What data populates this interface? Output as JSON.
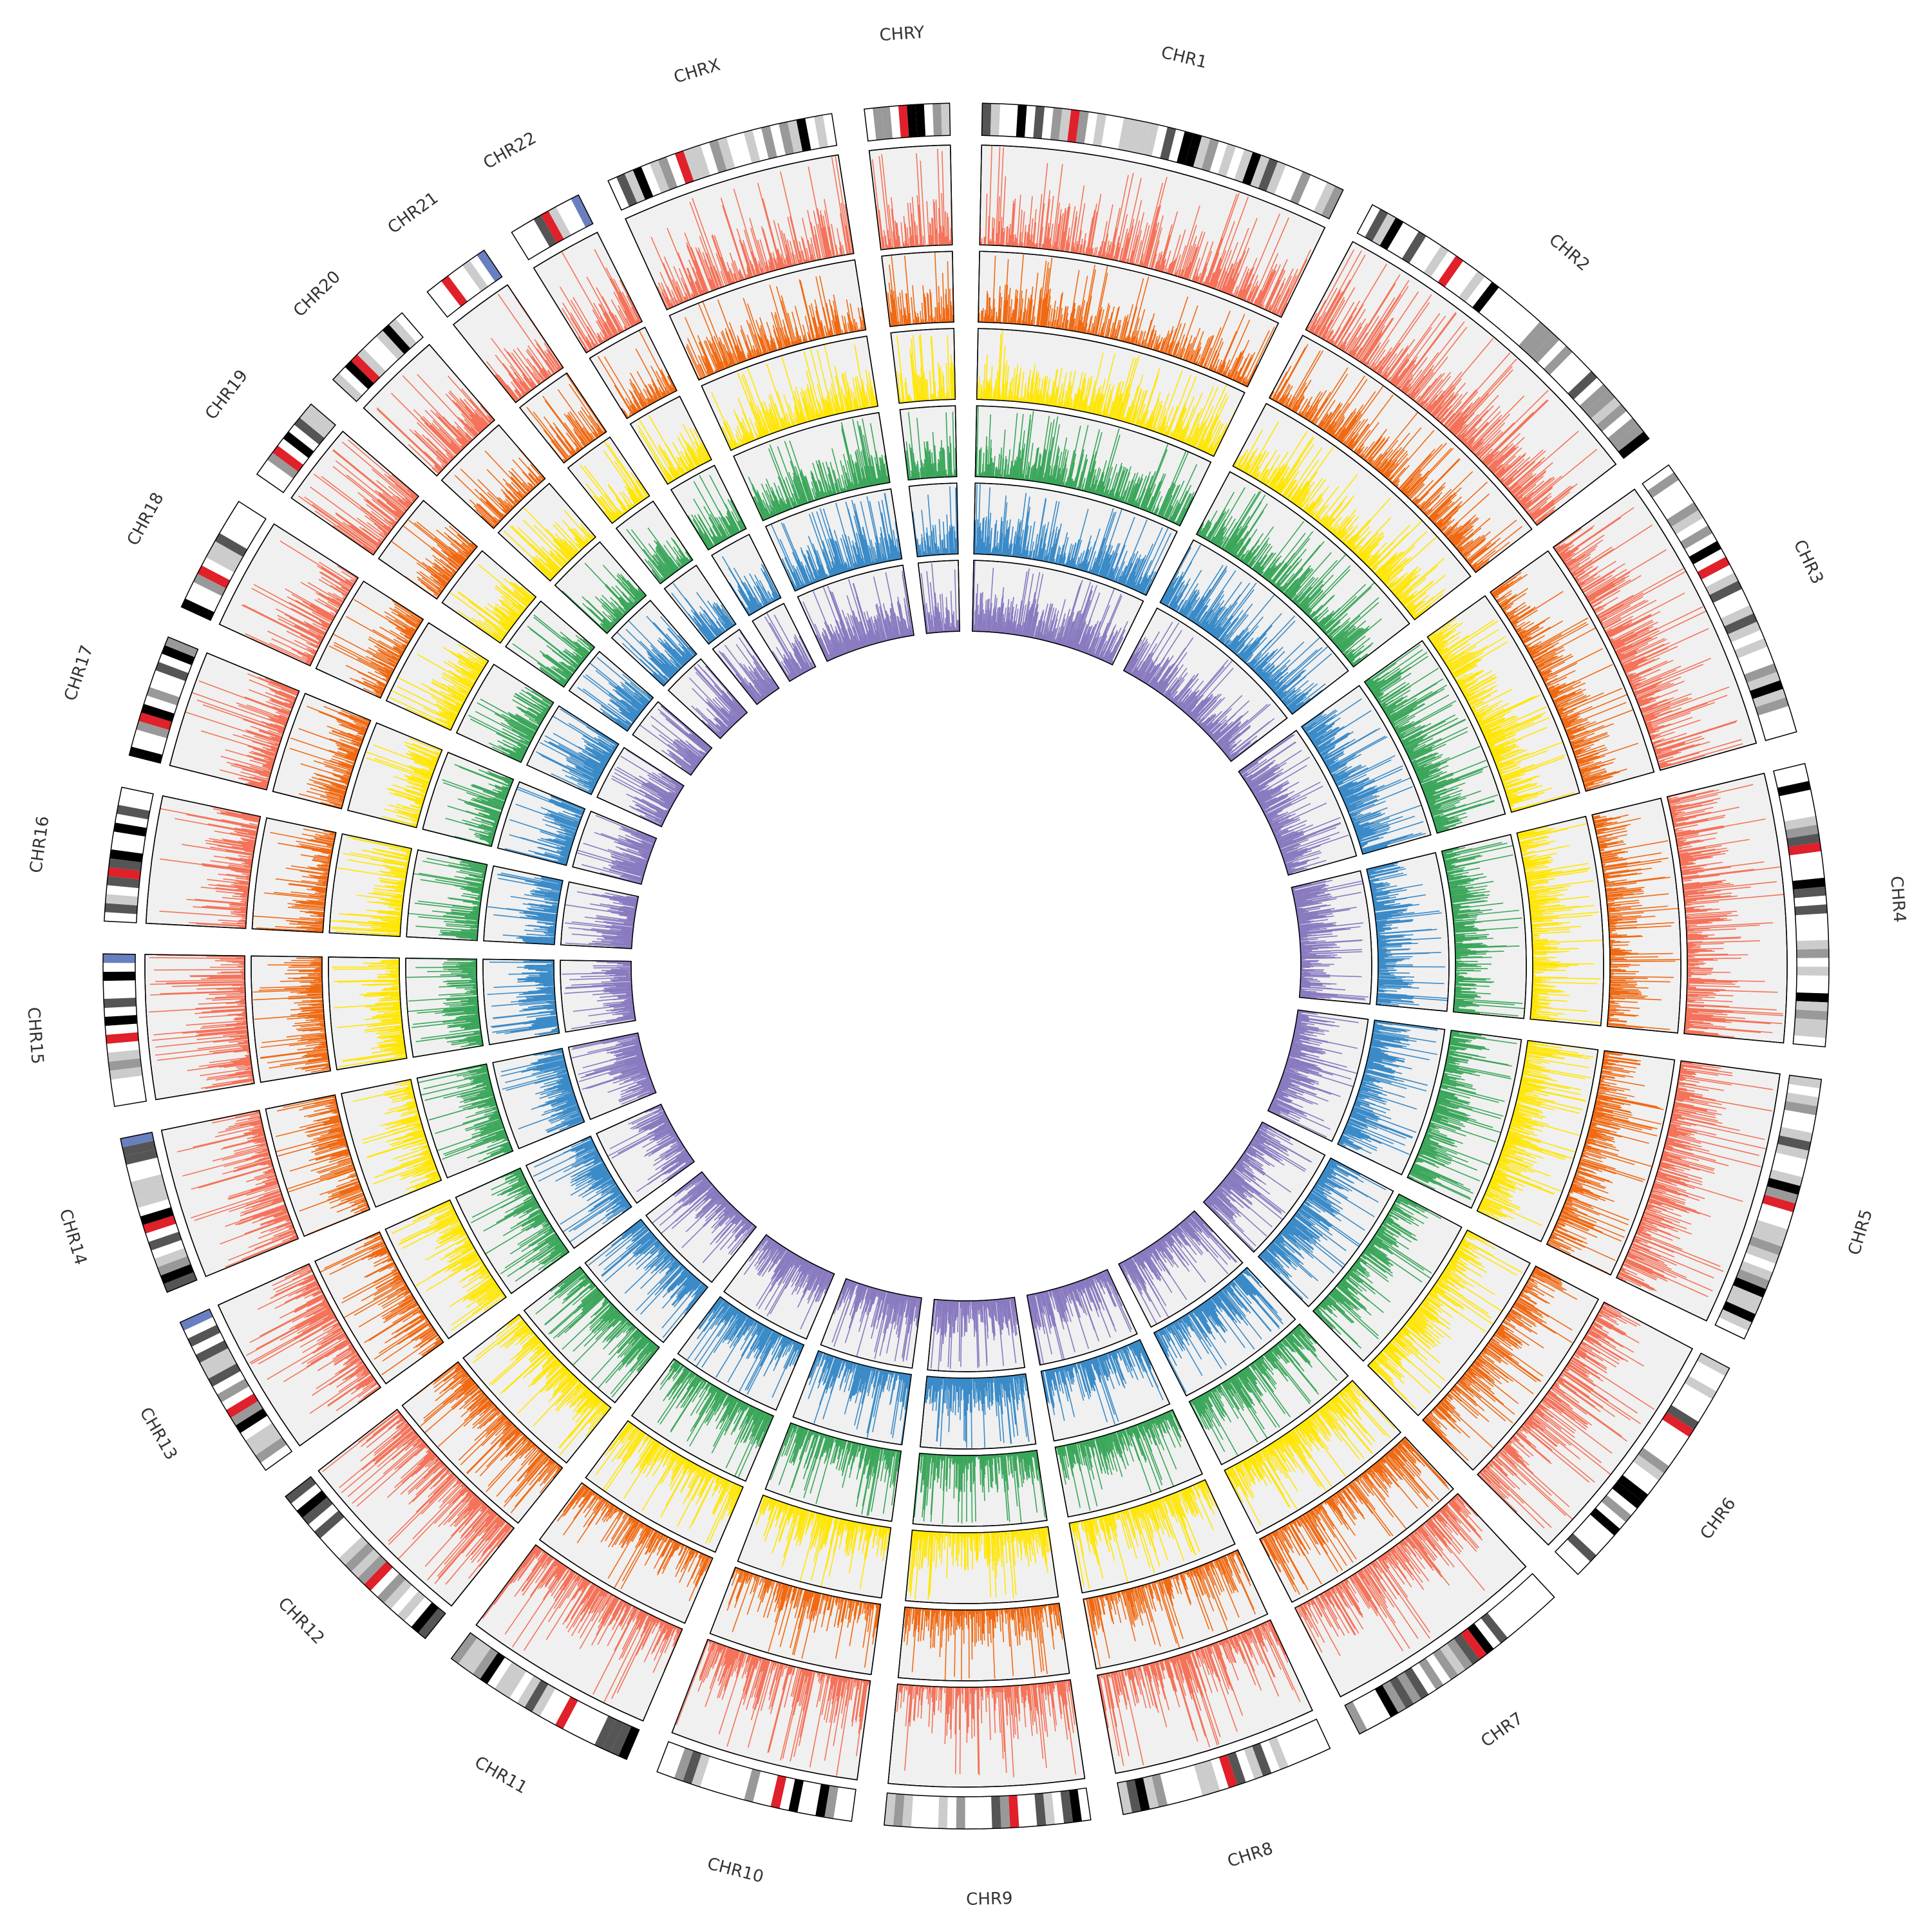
{
  "chart_data": {
    "type": "circos",
    "title": "",
    "chromosomes": [
      {
        "name": "CHR1",
        "label": "CHR1",
        "length": 249
      },
      {
        "name": "CHR2",
        "label": "CHR2",
        "length": 243
      },
      {
        "name": "CHR3",
        "label": "CHR3",
        "length": 198
      },
      {
        "name": "CHR4",
        "label": "CHR4",
        "length": 190
      },
      {
        "name": "CHR5",
        "label": "CHR5",
        "length": 181
      },
      {
        "name": "CHR6",
        "label": "CHR6",
        "length": 171
      },
      {
        "name": "CHR7",
        "label": "CHR7",
        "length": 159
      },
      {
        "name": "CHR8",
        "label": "CHR8",
        "length": 145
      },
      {
        "name": "CHR9",
        "label": "CHR9",
        "length": 138
      },
      {
        "name": "CHR10",
        "label": "CHR10",
        "length": 134
      },
      {
        "name": "CHR11",
        "label": "CHR11",
        "length": 135
      },
      {
        "name": "CHR12",
        "label": "CHR12",
        "length": 133
      },
      {
        "name": "CHR13",
        "label": "CHR13",
        "length": 114
      },
      {
        "name": "CHR14",
        "label": "CHR14",
        "length": 107
      },
      {
        "name": "CHR15",
        "label": "CHR15",
        "length": 102
      },
      {
        "name": "CHR16",
        "label": "CHR16",
        "length": 90
      },
      {
        "name": "CHR17",
        "label": "CHR17",
        "length": 83
      },
      {
        "name": "CHR18",
        "label": "CHR18",
        "length": 80
      },
      {
        "name": "CHR19",
        "label": "CHR19",
        "length": 59
      },
      {
        "name": "CHR20",
        "label": "CHR20",
        "length": 64
      },
      {
        "name": "CHR21",
        "label": "CHR21",
        "length": 47
      },
      {
        "name": "CHR22",
        "label": "CHR22",
        "length": 51
      },
      {
        "name": "CHRX",
        "label": "CHRX",
        "length": 156
      },
      {
        "name": "CHRY",
        "label": "CHRY",
        "length": 57
      }
    ],
    "tracks": [
      {
        "color": "#f4735a"
      },
      {
        "color": "#f06a14"
      },
      {
        "color": "#ffe600"
      },
      {
        "color": "#3aa65a"
      },
      {
        "color": "#3b8bc8"
      },
      {
        "color": "#8a7ac0"
      }
    ],
    "ideogram_colors": {
      "gpos100": "#000000",
      "gpos75": "#555555",
      "gpos50": "#999999",
      "gpos25": "#cccccc",
      "gneg": "#ffffff",
      "acen": "#e0202a",
      "gvar": "#6a7fbf"
    },
    "value_range": [
      0,
      1
    ],
    "legend": "none",
    "grid": false
  }
}
